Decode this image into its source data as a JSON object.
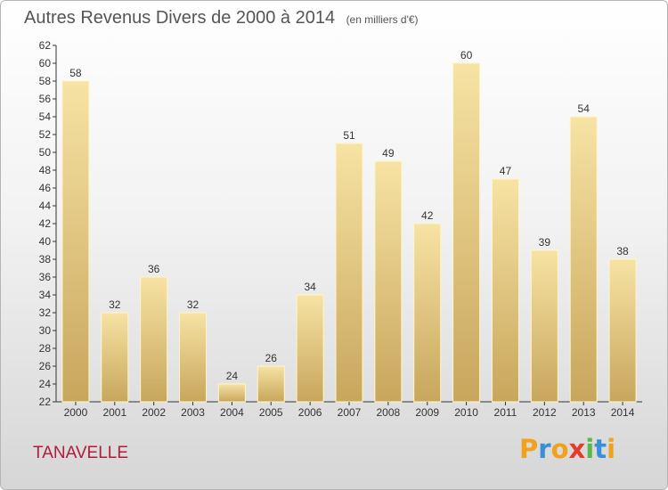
{
  "title": "Autres Revenus Divers de 2000 à 2014",
  "title_unit": "(en milliers d'€)",
  "commune": "TANAVELLE",
  "logo": {
    "letters": [
      "P",
      "r",
      "o",
      "x",
      "i",
      "t",
      "i"
    ],
    "colors": [
      "#f0a21c",
      "#3a8fd6",
      "#f0a21c",
      "#e63b2a",
      "#59b847",
      "#3a8fd6",
      "#f0a21c"
    ]
  },
  "colors": {
    "bar_top": "#f7e3a4",
    "bar_bottom": "#c8a65c",
    "title": "#555555",
    "commune": "#b01c3b"
  },
  "chart_data": {
    "type": "bar",
    "title": "Autres Revenus Divers de 2000 à 2014",
    "categories": [
      "2000",
      "2001",
      "2002",
      "2003",
      "2004",
      "2005",
      "2006",
      "2007",
      "2008",
      "2009",
      "2010",
      "2011",
      "2012",
      "2013",
      "2014"
    ],
    "values": [
      58,
      32,
      36,
      32,
      24,
      26,
      34,
      51,
      49,
      42,
      60,
      47,
      39,
      54,
      38
    ],
    "xlabel": "",
    "ylabel": "",
    "ylim": [
      22,
      62
    ],
    "yticks": [
      22,
      24,
      26,
      28,
      30,
      32,
      34,
      36,
      38,
      40,
      42,
      44,
      46,
      48,
      50,
      52,
      54,
      56,
      58,
      60,
      62
    ],
    "grid": false,
    "legend": "none"
  }
}
